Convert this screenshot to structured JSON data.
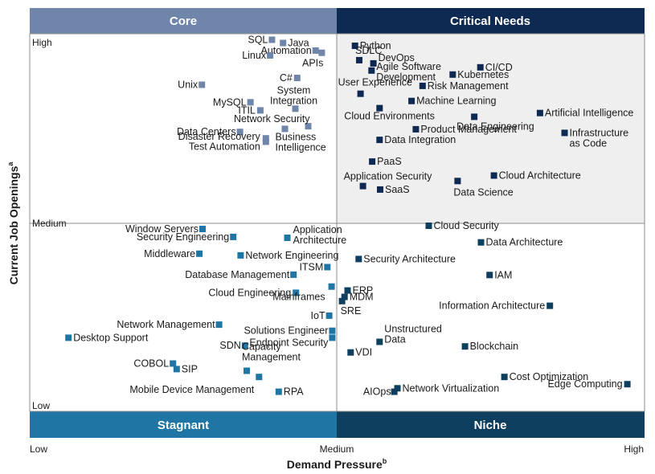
{
  "chart_data": {
    "type": "scatter",
    "xlabel": "Demand Pressure",
    "xlabel_sup": "b",
    "ylabel": "Current Job Openings",
    "ylabel_sup": "a",
    "xlim": [
      0,
      100
    ],
    "ylim": [
      0,
      100
    ],
    "x_ticks": {
      "low": "Low",
      "medium": "Medium",
      "high": "High"
    },
    "y_ticks": {
      "low": "Low",
      "medium": "Medium",
      "high": "High"
    },
    "quadrants": {
      "core": {
        "label": "Core",
        "color": "#6f86aa"
      },
      "critical": {
        "label": "Critical Needs",
        "color": "#0e2a52"
      },
      "stagnant": {
        "label": "Stagnant",
        "color": "#1f75a3"
      },
      "niche": {
        "label": "Niche",
        "color": "#0e3f5e"
      }
    },
    "points": [
      {
        "lines": [
          "SQL"
        ],
        "x": 39.4,
        "y": 96.8,
        "q": "core",
        "anchor": "end",
        "dx": -5,
        "dy": 4
      },
      {
        "lines": [
          "Java"
        ],
        "x": 41.2,
        "y": 95.1,
        "q": "core",
        "anchor": "start",
        "dx": 6,
        "dy": 4
      },
      {
        "lines": [
          "Automation"
        ],
        "x": 46.5,
        "y": 91.1,
        "q": "core",
        "anchor": "end",
        "dx": -5,
        "dy": 4
      },
      {
        "lines": [
          "APIs"
        ],
        "x": 47.5,
        "y": 89.9,
        "q": "core",
        "anchor": "end",
        "dx": 2,
        "dy": 17
      },
      {
        "lines": [
          "Linux"
        ],
        "x": 39.1,
        "y": 88.5,
        "q": "core",
        "anchor": "end",
        "dx": -5,
        "dy": 4
      },
      {
        "lines": [
          "C#"
        ],
        "x": 43.5,
        "y": 76.6,
        "q": "core",
        "anchor": "end",
        "dx": -6,
        "dy": 4
      },
      {
        "lines": [
          "Unix"
        ],
        "x": 28.0,
        "y": 73.0,
        "q": "core",
        "anchor": "end",
        "dx": -5,
        "dy": 4
      },
      {
        "lines": [
          "System",
          "Integration"
        ],
        "x": 43.2,
        "y": 60.3,
        "q": "core",
        "anchor": "middle",
        "dx": -2,
        "dy": -19
      },
      {
        "lines": [
          "MySQL"
        ],
        "x": 35.9,
        "y": 63.7,
        "q": "core",
        "anchor": "end",
        "dx": -5,
        "dy": 4
      },
      {
        "lines": [
          "ITIL"
        ],
        "x": 37.5,
        "y": 59.4,
        "q": "core",
        "anchor": "end",
        "dx": -6,
        "dy": 4
      },
      {
        "lines": [
          "Network Security"
        ],
        "x": 45.3,
        "y": 51.0,
        "q": "core",
        "anchor": "end",
        "dx": 2,
        "dy": -5
      },
      {
        "lines": [
          "Business",
          "Intelligence"
        ],
        "x": 41.5,
        "y": 49.6,
        "q": "core",
        "anchor": "start",
        "dx": -12,
        "dy": 14
      },
      {
        "lines": [
          "Data Centers"
        ],
        "x": 34.2,
        "y": 48.0,
        "q": "core",
        "anchor": "end",
        "dx": -5,
        "dy": 4
      },
      {
        "lines": [
          "Disaster Recovery"
        ],
        "x": 38.4,
        "y": 44.6,
        "q": "core",
        "anchor": "end",
        "dx": -7,
        "dy": 2
      },
      {
        "lines": [
          "Test Automation"
        ],
        "x": 38.4,
        "y": 42.8,
        "q": "core",
        "anchor": "end",
        "dx": -7,
        "dy": 10
      },
      {
        "lines": [
          "Python"
        ],
        "x": 52.9,
        "y": 93.6,
        "q": "critical",
        "anchor": "start",
        "dx": 6,
        "dy": 4
      },
      {
        "lines": [
          "SDLC"
        ],
        "x": 53.6,
        "y": 86.0,
        "q": "critical",
        "anchor": "start",
        "dx": -5,
        "dy": -8
      },
      {
        "lines": [
          "DevOps"
        ],
        "x": 55.9,
        "y": 84.3,
        "q": "critical",
        "anchor": "start",
        "dx": 6,
        "dy": -3
      },
      {
        "lines": [
          "Agile Software",
          "Development"
        ],
        "x": 55.6,
        "y": 80.5,
        "q": "critical",
        "anchor": "start",
        "dx": 6,
        "dy": -1
      },
      {
        "lines": [
          "CI/CD"
        ],
        "x": 73.3,
        "y": 82.2,
        "q": "critical",
        "anchor": "start",
        "dx": 6,
        "dy": 4
      },
      {
        "lines": [
          "Kubernetes"
        ],
        "x": 68.8,
        "y": 78.4,
        "q": "critical",
        "anchor": "start",
        "dx": 6,
        "dy": 4
      },
      {
        "lines": [
          "Risk Management"
        ],
        "x": 63.9,
        "y": 72.4,
        "q": "critical",
        "anchor": "start",
        "dx": 6,
        "dy": 4
      },
      {
        "lines": [
          "User Experience"
        ],
        "x": 53.8,
        "y": 68.2,
        "q": "critical",
        "anchor": "start",
        "dx": -28,
        "dy": -10
      },
      {
        "lines": [
          "Machine Learning"
        ],
        "x": 62.1,
        "y": 64.4,
        "q": "critical",
        "anchor": "start",
        "dx": 6,
        "dy": 4
      },
      {
        "lines": [
          "Cloud Environments"
        ],
        "x": 56.9,
        "y": 60.6,
        "q": "critical",
        "anchor": "start",
        "dx": -44,
        "dy": 14
      },
      {
        "lines": [
          "Artificial Intelligence"
        ],
        "x": 83.0,
        "y": 58.0,
        "q": "critical",
        "anchor": "start",
        "dx": 6,
        "dy": 4
      },
      {
        "lines": [
          "Data Engineering"
        ],
        "x": 72.3,
        "y": 56.0,
        "q": "critical",
        "anchor": "start",
        "dx": -22,
        "dy": 16
      },
      {
        "lines": [
          "Product Management"
        ],
        "x": 62.8,
        "y": 49.4,
        "q": "critical",
        "anchor": "start",
        "dx": 6,
        "dy": 4
      },
      {
        "lines": [
          "Infrastructure",
          "as Code"
        ],
        "x": 87.0,
        "y": 47.5,
        "q": "critical",
        "anchor": "start",
        "dx": 6,
        "dy": 4
      },
      {
        "lines": [
          "Data Integration"
        ],
        "x": 56.9,
        "y": 43.8,
        "q": "critical",
        "anchor": "start",
        "dx": 6,
        "dy": 4
      },
      {
        "lines": [
          "PaaS"
        ],
        "x": 55.7,
        "y": 32.3,
        "q": "critical",
        "anchor": "start",
        "dx": 6,
        "dy": 4
      },
      {
        "lines": [
          "Cloud Architecture"
        ],
        "x": 75.5,
        "y": 24.9,
        "q": "critical",
        "anchor": "start",
        "dx": 6,
        "dy": 4
      },
      {
        "lines": [
          "Application Security"
        ],
        "x": 54.2,
        "y": 19.3,
        "q": "critical",
        "anchor": "start",
        "dx": -24,
        "dy": -8
      },
      {
        "lines": [
          "SaaS"
        ],
        "x": 57.0,
        "y": 17.5,
        "q": "critical",
        "anchor": "start",
        "dx": 6,
        "dy": 4
      },
      {
        "lines": [
          "Data Science"
        ],
        "x": 69.6,
        "y": 22.0,
        "q": "critical",
        "anchor": "start",
        "dx": -5,
        "dy": 18
      },
      {
        "lines": [
          "Window Servers"
        ],
        "x": 28.1,
        "y": 96.6,
        "q": "stagnant",
        "anchor": "end",
        "dx": -5,
        "dy": 4
      },
      {
        "lines": [
          "Security Engineering"
        ],
        "x": 33.1,
        "y": 92.4,
        "q": "stagnant",
        "anchor": "end",
        "dx": -5,
        "dy": 4
      },
      {
        "lines": [
          "Application",
          "Architecture"
        ],
        "x": 41.9,
        "y": 91.9,
        "q": "stagnant",
        "anchor": "start",
        "dx": 7,
        "dy": -6
      },
      {
        "lines": [
          "Middleware"
        ],
        "x": 27.6,
        "y": 83.5,
        "q": "stagnant",
        "anchor": "end",
        "dx": -5,
        "dy": 4
      },
      {
        "lines": [
          "Network Engineering"
        ],
        "x": 34.3,
        "y": 82.6,
        "q": "stagnant",
        "anchor": "start",
        "dx": 6,
        "dy": 4
      },
      {
        "lines": [
          "ITSM"
        ],
        "x": 48.4,
        "y": 76.4,
        "q": "stagnant",
        "anchor": "end",
        "dx": -5,
        "dy": 4
      },
      {
        "lines": [
          "Database Management"
        ],
        "x": 42.9,
        "y": 72.4,
        "q": "stagnant",
        "anchor": "end",
        "dx": -5,
        "dy": 4
      },
      {
        "lines": [
          "Cloud Engineering"
        ],
        "x": 43.3,
        "y": 62.8,
        "q": "stagnant",
        "anchor": "end",
        "dx": -6,
        "dy": 4
      },
      {
        "lines": [
          "Mainframes"
        ],
        "x": 49.1,
        "y": 66.1,
        "q": "stagnant",
        "anchor": "end",
        "dx": -8,
        "dy": 17
      },
      {
        "lines": [
          "Network Management"
        ],
        "x": 30.8,
        "y": 45.9,
        "q": "stagnant",
        "anchor": "end",
        "dx": -5,
        "dy": 4
      },
      {
        "lines": [
          "IoT"
        ],
        "x": 48.7,
        "y": 50.7,
        "q": "stagnant",
        "anchor": "end",
        "dx": -5,
        "dy": 4
      },
      {
        "lines": [
          "Solutions Engineer"
        ],
        "x": 49.2,
        "y": 42.7,
        "q": "stagnant",
        "anchor": "end",
        "dx": -5,
        "dy": 4
      },
      {
        "lines": [
          "Endpoint Security"
        ],
        "x": 49.2,
        "y": 39.0,
        "q": "stagnant",
        "anchor": "end",
        "dx": -5,
        "dy": 10
      },
      {
        "lines": [
          "Desktop Support"
        ],
        "x": 6.3,
        "y": 39.0,
        "q": "stagnant",
        "anchor": "start",
        "dx": 6,
        "dy": 4
      },
      {
        "lines": [
          "SDN"
        ],
        "x": 35.0,
        "y": 34.8,
        "q": "stagnant",
        "anchor": "end",
        "dx": -5,
        "dy": 4
      },
      {
        "lines": [
          "Capacity",
          "Management"
        ],
        "x": 35.3,
        "y": 21.5,
        "q": "stagnant",
        "anchor": "start",
        "dx": -6,
        "dy": -26
      },
      {
        "lines": [
          "COBOL"
        ],
        "x": 23.3,
        "y": 25.3,
        "q": "stagnant",
        "anchor": "end",
        "dx": -5,
        "dy": 4
      },
      {
        "lines": [
          "SIP"
        ],
        "x": 23.9,
        "y": 22.4,
        "q": "stagnant",
        "anchor": "start",
        "dx": 6,
        "dy": 4
      },
      {
        "lines": [
          "Mobile Device Management"
        ],
        "x": 37.3,
        "y": 18.2,
        "q": "stagnant",
        "anchor": "end",
        "dx": -6,
        "dy": 20
      },
      {
        "lines": [
          "RPA"
        ],
        "x": 40.5,
        "y": 10.4,
        "q": "stagnant",
        "anchor": "start",
        "dx": 6,
        "dy": 4
      },
      {
        "lines": [
          "Cloud Security"
        ],
        "x": 64.9,
        "y": 98.3,
        "q": "niche",
        "anchor": "start",
        "dx": 6,
        "dy": 4
      },
      {
        "lines": [
          "Data Architecture"
        ],
        "x": 73.4,
        "y": 89.5,
        "q": "niche",
        "anchor": "start",
        "dx": 6,
        "dy": 4
      },
      {
        "lines": [
          "Security Architecture"
        ],
        "x": 53.5,
        "y": 80.7,
        "q": "niche",
        "anchor": "start",
        "dx": 6,
        "dy": 4
      },
      {
        "lines": [
          "IAM"
        ],
        "x": 74.8,
        "y": 72.2,
        "q": "niche",
        "anchor": "start",
        "dx": 6,
        "dy": 4
      },
      {
        "lines": [
          "ERP"
        ],
        "x": 51.7,
        "y": 64.0,
        "q": "niche",
        "anchor": "start",
        "dx": 6,
        "dy": 4
      },
      {
        "lines": [
          "MDM"
        ],
        "x": 51.2,
        "y": 60.6,
        "q": "niche",
        "anchor": "start",
        "dx": 6,
        "dy": 4
      },
      {
        "lines": [
          "SRE"
        ],
        "x": 50.8,
        "y": 58.4,
        "q": "niche",
        "anchor": "start",
        "dx": -2,
        "dy": 16
      },
      {
        "lines": [
          "Information Architecture"
        ],
        "x": 84.6,
        "y": 55.9,
        "q": "niche",
        "anchor": "end",
        "dx": -6,
        "dy": 4
      },
      {
        "lines": [
          "Unstructured",
          "Data"
        ],
        "x": 56.9,
        "y": 36.8,
        "q": "niche",
        "anchor": "start",
        "dx": 6,
        "dy": -12
      },
      {
        "lines": [
          "Blockchain"
        ],
        "x": 70.8,
        "y": 34.4,
        "q": "niche",
        "anchor": "start",
        "dx": 6,
        "dy": 4
      },
      {
        "lines": [
          "VDI"
        ],
        "x": 52.2,
        "y": 31.2,
        "q": "niche",
        "anchor": "start",
        "dx": 6,
        "dy": 4
      },
      {
        "lines": [
          "Cost Optimization"
        ],
        "x": 77.2,
        "y": 18.2,
        "q": "niche",
        "anchor": "start",
        "dx": 6,
        "dy": 4
      },
      {
        "lines": [
          "Edge Computing"
        ],
        "x": 97.2,
        "y": 14.4,
        "q": "niche",
        "anchor": "end",
        "dx": -6,
        "dy": 4
      },
      {
        "lines": [
          "Network Virtualization"
        ],
        "x": 59.8,
        "y": 12.2,
        "q": "niche",
        "anchor": "start",
        "dx": 6,
        "dy": 4
      },
      {
        "lines": [
          "AIOps"
        ],
        "x": 59.3,
        "y": 10.4,
        "q": "niche",
        "anchor": "end",
        "dx": -4,
        "dy": 4
      }
    ]
  }
}
